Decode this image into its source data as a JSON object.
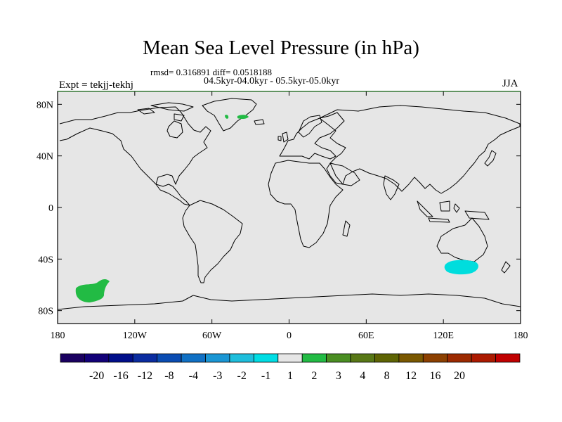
{
  "title": "Mean Sea Level Pressure (in hPa)",
  "stats_line": "rmsd= 0.316891 diff= 0.0518188",
  "period_line": "04.5kyr-04.0kyr - 05.5kyr-05.0kyr",
  "left_label": "Expt = tekjj-tekhj",
  "right_label": "JJA",
  "map": {
    "projection": "cylindrical-equidistant",
    "lon_range": [
      -180,
      180
    ],
    "lat_range": [
      -90,
      90
    ],
    "background_color": "#e6e6e6",
    "coastline_color": "#000000",
    "lat_ticks": [
      {
        "value": 80,
        "label": "80N"
      },
      {
        "value": 40,
        "label": "40N"
      },
      {
        "value": 0,
        "label": "0"
      },
      {
        "value": -40,
        "label": "40S"
      },
      {
        "value": -80,
        "label": "80S"
      }
    ],
    "lon_ticks": [
      {
        "value": -180,
        "label": "180"
      },
      {
        "value": -120,
        "label": "120W"
      },
      {
        "value": -60,
        "label": "60W"
      },
      {
        "value": 0,
        "label": "0"
      },
      {
        "value": 60,
        "label": "60E"
      },
      {
        "value": 120,
        "label": "120E"
      },
      {
        "value": 180,
        "label": "180"
      }
    ],
    "shaded_regions": [
      {
        "name": "greenland-east",
        "center_lon": -37,
        "center_lat": 73,
        "class": "1 to 2",
        "color": "#22bb44"
      },
      {
        "name": "greenland-west-speck",
        "center_lon": -47,
        "center_lat": 73,
        "class": "1 to 2",
        "color": "#22bb44"
      },
      {
        "name": "south-pacific-anomaly",
        "center_lon": -155,
        "center_lat": -65,
        "class": "1 to 2",
        "color": "#22bb44"
      },
      {
        "name": "south-of-australia-anomaly",
        "center_lon": 131,
        "center_lat": -46,
        "class": "-2 to -1",
        "color": "#00dddd"
      }
    ]
  },
  "colorbar": {
    "colors": [
      "#1a0060",
      "#120078",
      "#000e8a",
      "#0a2ca0",
      "#0a4cb2",
      "#1070c4",
      "#1a96d4",
      "#1ebedc",
      "#00dde4",
      "#e6e6e6",
      "#22bb44",
      "#4a8e22",
      "#587816",
      "#5e6404",
      "#7a5800",
      "#8c4000",
      "#9c2a00",
      "#ac1a00",
      "#c00000"
    ],
    "labels": [
      "-20",
      "-16",
      "-12",
      "-8",
      "-4",
      "-3",
      "-2",
      "-1",
      "1",
      "2",
      "3",
      "4",
      "8",
      "12",
      "16",
      "20"
    ]
  }
}
